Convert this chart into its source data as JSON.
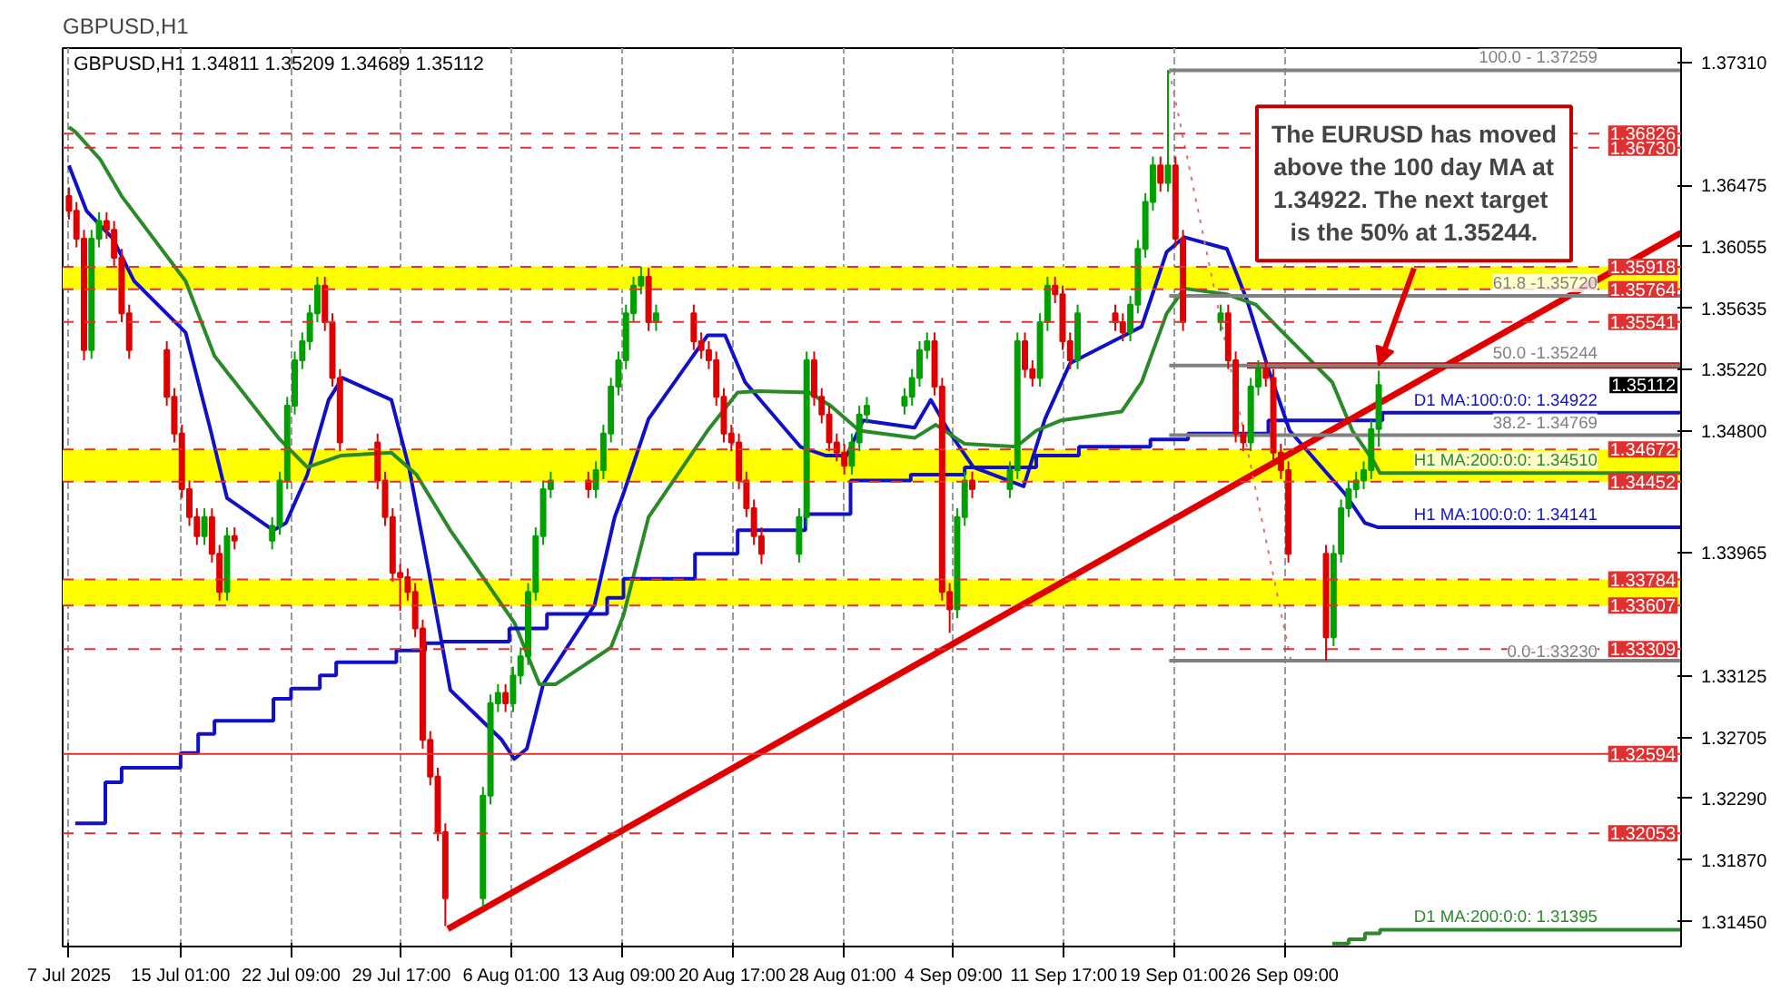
{
  "chart_data": {
    "type": "candlestick",
    "title": "GBPUSD,H1",
    "subtitle": "GBPUSD,H1  1.34811 1.35209 1.34689 1.35112",
    "x": [
      "2025-07-07T15:00",
      "2025-07-08T03:00",
      "2025-07-08T15:00",
      "2025-07-09T03:00",
      "2025-07-09T15:00",
      "2025-07-10T03:00",
      "2025-07-10T15:00",
      "2025-07-11T03:00",
      "2025-07-11T15:00",
      "2025-07-14T03:00",
      "2025-07-14T15:00",
      "2025-07-15T03:00",
      "2025-07-15T15:00",
      "2025-07-16T03:00",
      "2025-07-16T15:00",
      "2025-07-17T03:00",
      "2025-07-17T15:00",
      "2025-07-18T03:00",
      "2025-07-18T15:00",
      "2025-07-21T03:00",
      "2025-07-21T15:00",
      "2025-07-22T03:00",
      "2025-07-22T15:00",
      "2025-07-23T03:00",
      "2025-07-23T15:00",
      "2025-07-24T03:00",
      "2025-07-24T15:00",
      "2025-07-25T03:00",
      "2025-07-25T15:00",
      "2025-07-28T03:00",
      "2025-07-28T15:00",
      "2025-07-29T03:00",
      "2025-07-29T15:00",
      "2025-07-30T03:00",
      "2025-07-30T15:00",
      "2025-07-31T03:00",
      "2025-07-31T15:00",
      "2025-08-01T03:00",
      "2025-08-01T15:00",
      "2025-08-04T03:00",
      "2025-08-04T15:00",
      "2025-08-05T03:00",
      "2025-08-05T15:00",
      "2025-08-06T03:00",
      "2025-08-06T15:00",
      "2025-08-07T03:00",
      "2025-08-07T15:00",
      "2025-08-08T03:00",
      "2025-08-08T15:00",
      "2025-08-11T03:00",
      "2025-08-11T15:00",
      "2025-08-12T03:00",
      "2025-08-12T15:00",
      "2025-08-13T03:00",
      "2025-08-13T15:00",
      "2025-08-14T03:00",
      "2025-08-14T15:00",
      "2025-08-15T03:00",
      "2025-08-15T15:00",
      "2025-08-18T03:00",
      "2025-08-18T15:00",
      "2025-08-19T03:00",
      "2025-08-19T15:00",
      "2025-08-20T03:00",
      "2025-08-20T15:00",
      "2025-08-21T03:00",
      "2025-08-21T15:00",
      "2025-08-22T03:00",
      "2025-08-22T15:00",
      "2025-08-25T03:00",
      "2025-08-25T15:00",
      "2025-08-26T03:00",
      "2025-08-26T15:00",
      "2025-08-27T03:00",
      "2025-08-27T15:00",
      "2025-08-28T03:00",
      "2025-08-28T15:00",
      "2025-08-29T03:00",
      "2025-08-29T15:00",
      "2025-09-01T03:00",
      "2025-09-01T15:00",
      "2025-09-02T03:00",
      "2025-09-02T15:00",
      "2025-09-03T03:00",
      "2025-09-03T15:00",
      "2025-09-04T03:00",
      "2025-09-04T15:00",
      "2025-09-05T03:00",
      "2025-09-05T15:00",
      "2025-09-08T03:00",
      "2025-09-08T15:00",
      "2025-09-09T03:00",
      "2025-09-09T15:00",
      "2025-09-10T03:00",
      "2025-09-10T15:00",
      "2025-09-11T03:00",
      "2025-09-11T15:00",
      "2025-09-12T03:00",
      "2025-09-12T15:00",
      "2025-09-15T03:00",
      "2025-09-15T15:00",
      "2025-09-16T03:00",
      "2025-09-16T15:00",
      "2025-09-17T03:00",
      "2025-09-17T15:00",
      "2025-09-18T03:00",
      "2025-09-18T15:00",
      "2025-09-19T03:00",
      "2025-09-19T15:00",
      "2025-09-22T03:00",
      "2025-09-22T15:00",
      "2025-09-23T03:00",
      "2025-09-23T15:00",
      "2025-09-24T03:00",
      "2025-09-24T15:00",
      "2025-09-25T03:00",
      "2025-09-25T15:00",
      "2025-09-26T03:00",
      "2025-09-26T15:00",
      "2025-09-29T03:00",
      "2025-09-29T15:00",
      "2025-09-30T03:00",
      "2025-09-30T15:00",
      "2025-10-01T03:00",
      "2025-10-01T15:00",
      "2025-10-02T03:00",
      "2025-10-02T15:00"
    ],
    "ohlc": [
      [
        1.364,
        1.3646,
        1.3624,
        1.363
      ],
      [
        1.363,
        1.3636,
        1.3605,
        1.3611
      ],
      [
        1.3611,
        1.3617,
        1.3528,
        1.3535
      ],
      [
        1.3535,
        1.3617,
        1.3529,
        1.3611
      ],
      [
        1.3611,
        1.3629,
        1.3605,
        1.3623
      ],
      [
        1.3623,
        1.3629,
        1.3611,
        1.3617
      ],
      [
        1.3617,
        1.3623,
        1.3592,
        1.3598
      ],
      [
        1.3598,
        1.3604,
        1.3554,
        1.356
      ],
      [
        1.356,
        1.3566,
        1.3529,
        1.3535
      ],
      [
        1.3535,
        1.3541,
        1.3497,
        1.3503
      ],
      [
        1.3503,
        1.3509,
        1.3472,
        1.3478
      ],
      [
        1.3478,
        1.3484,
        1.3434,
        1.344
      ],
      [
        1.344,
        1.3446,
        1.3415,
        1.3421
      ],
      [
        1.3421,
        1.3427,
        1.3402,
        1.3408
      ],
      [
        1.3408,
        1.3427,
        1.3402,
        1.3421
      ],
      [
        1.3421,
        1.3427,
        1.339,
        1.3396
      ],
      [
        1.3396,
        1.3402,
        1.3364,
        1.337
      ],
      [
        1.337,
        1.3414,
        1.3364,
        1.3408
      ],
      [
        1.3408,
        1.3414,
        1.3399,
        1.3405
      ],
      [
        1.3405,
        1.3421,
        1.3399,
        1.3415
      ],
      [
        1.3415,
        1.3452,
        1.3409,
        1.3446
      ],
      [
        1.3446,
        1.3503,
        1.344,
        1.3497
      ],
      [
        1.3497,
        1.3534,
        1.3491,
        1.3528
      ],
      [
        1.3528,
        1.3547,
        1.3522,
        1.3541
      ],
      [
        1.3541,
        1.3566,
        1.3535,
        1.356
      ],
      [
        1.356,
        1.3585,
        1.3554,
        1.3579
      ],
      [
        1.3579,
        1.3585,
        1.3548,
        1.3554
      ],
      [
        1.3554,
        1.356,
        1.351,
        1.3516
      ],
      [
        1.3516,
        1.3522,
        1.3466,
        1.3472
      ],
      [
        1.3472,
        1.3478,
        1.344,
        1.3446
      ],
      [
        1.3446,
        1.3452,
        1.3415,
        1.3421
      ],
      [
        1.3421,
        1.3427,
        1.3377,
        1.3383
      ],
      [
        1.3383,
        1.3389,
        1.3357,
        1.338
      ],
      [
        1.338,
        1.3386,
        1.3364,
        1.337
      ],
      [
        1.337,
        1.3376,
        1.3339,
        1.3345
      ],
      [
        1.3345,
        1.3351,
        1.3263,
        1.3269
      ],
      [
        1.3269,
        1.3275,
        1.3238,
        1.3244
      ],
      [
        1.3244,
        1.325,
        1.32,
        1.3206
      ],
      [
        1.3206,
        1.3212,
        1.3142,
        1.3161
      ],
      [
        1.3161,
        1.3237,
        1.3155,
        1.3231
      ],
      [
        1.3231,
        1.33,
        1.3225,
        1.3294
      ],
      [
        1.3294,
        1.3307,
        1.3288,
        1.3301
      ],
      [
        1.3301,
        1.3307,
        1.3288,
        1.3294
      ],
      [
        1.3294,
        1.3319,
        1.3288,
        1.3313
      ],
      [
        1.3313,
        1.3332,
        1.3307,
        1.3326
      ],
      [
        1.3326,
        1.3376,
        1.332,
        1.337
      ],
      [
        1.337,
        1.3414,
        1.3364,
        1.3408
      ],
      [
        1.3408,
        1.3446,
        1.3402,
        1.344
      ],
      [
        1.344,
        1.3452,
        1.3434,
        1.3446
      ],
      [
        1.3446,
        1.3452,
        1.3434,
        1.344
      ],
      [
        1.344,
        1.3459,
        1.3434,
        1.3453
      ],
      [
        1.3453,
        1.3484,
        1.3447,
        1.3478
      ],
      [
        1.3478,
        1.3516,
        1.3472,
        1.351
      ],
      [
        1.351,
        1.3534,
        1.3504,
        1.3528
      ],
      [
        1.3528,
        1.3566,
        1.3522,
        1.356
      ],
      [
        1.356,
        1.3585,
        1.3554,
        1.3579
      ],
      [
        1.3579,
        1.3592,
        1.3573,
        1.3585
      ],
      [
        1.3585,
        1.3591,
        1.3548,
        1.3554
      ],
      [
        1.3554,
        1.3566,
        1.3548,
        1.356
      ],
      [
        1.356,
        1.3566,
        1.3535,
        1.3541
      ],
      [
        1.3541,
        1.3547,
        1.3529,
        1.3535
      ],
      [
        1.3535,
        1.3541,
        1.3522,
        1.3528
      ],
      [
        1.3528,
        1.3534,
        1.3497,
        1.3503
      ],
      [
        1.3503,
        1.3509,
        1.3472,
        1.3478
      ],
      [
        1.3478,
        1.3484,
        1.3466,
        1.3472
      ],
      [
        1.3472,
        1.3478,
        1.344,
        1.3446
      ],
      [
        1.3446,
        1.3452,
        1.3421,
        1.3427
      ],
      [
        1.3427,
        1.3433,
        1.3402,
        1.3408
      ],
      [
        1.3408,
        1.3414,
        1.3389,
        1.3396
      ],
      [
        1.3396,
        1.3427,
        1.339,
        1.3421
      ],
      [
        1.3421,
        1.3534,
        1.3415,
        1.3528
      ],
      [
        1.3528,
        1.3534,
        1.3497,
        1.3503
      ],
      [
        1.3503,
        1.3509,
        1.3485,
        1.3491
      ],
      [
        1.3491,
        1.3497,
        1.3466,
        1.3472
      ],
      [
        1.3472,
        1.3478,
        1.3459,
        1.3465
      ],
      [
        1.3465,
        1.3471,
        1.345,
        1.3456
      ],
      [
        1.3456,
        1.3478,
        1.345,
        1.3472
      ],
      [
        1.3472,
        1.3497,
        1.3466,
        1.3491
      ],
      [
        1.3491,
        1.3503,
        1.3485,
        1.3497
      ],
      [
        1.3497,
        1.3509,
        1.3491,
        1.3503
      ],
      [
        1.3503,
        1.3522,
        1.3497,
        1.3516
      ],
      [
        1.3516,
        1.3541,
        1.351,
        1.3535
      ],
      [
        1.3535,
        1.3547,
        1.3529,
        1.3541
      ],
      [
        1.3541,
        1.3547,
        1.3504,
        1.351
      ],
      [
        1.351,
        1.3516,
        1.3364,
        1.337
      ],
      [
        1.337,
        1.3376,
        1.3342,
        1.3358
      ],
      [
        1.3358,
        1.3427,
        1.3352,
        1.3421
      ],
      [
        1.3421,
        1.3452,
        1.3415,
        1.3446
      ],
      [
        1.3446,
        1.3452,
        1.3434,
        1.344
      ],
      [
        1.344,
        1.3459,
        1.3434,
        1.3453
      ],
      [
        1.3453,
        1.3547,
        1.3447,
        1.3541
      ],
      [
        1.3541,
        1.3547,
        1.3516,
        1.3522
      ],
      [
        1.3522,
        1.3528,
        1.351,
        1.3516
      ],
      [
        1.3516,
        1.356,
        1.351,
        1.3554
      ],
      [
        1.3554,
        1.3585,
        1.3548,
        1.3579
      ],
      [
        1.3579,
        1.3585,
        1.3567,
        1.3573
      ],
      [
        1.3573,
        1.3579,
        1.3535,
        1.3541
      ],
      [
        1.3541,
        1.3547,
        1.3522,
        1.3528
      ],
      [
        1.3528,
        1.3566,
        1.3522,
        1.356
      ],
      [
        1.356,
        1.3566,
        1.3548,
        1.3554
      ],
      [
        1.3554,
        1.356,
        1.3541,
        1.3547
      ],
      [
        1.3547,
        1.3572,
        1.3541,
        1.3566
      ],
      [
        1.3566,
        1.361,
        1.356,
        1.3604
      ],
      [
        1.3604,
        1.3642,
        1.3598,
        1.3636
      ],
      [
        1.3636,
        1.3667,
        1.363,
        1.3661
      ],
      [
        1.3661,
        1.3667,
        1.3643,
        1.3649
      ],
      [
        1.3649,
        1.3726,
        1.3643,
        1.3661
      ],
      [
        1.3661,
        1.3667,
        1.3605,
        1.3611
      ],
      [
        1.3611,
        1.3617,
        1.3548,
        1.3554
      ],
      [
        1.3554,
        1.3566,
        1.3548,
        1.356
      ],
      [
        1.356,
        1.3566,
        1.3522,
        1.3528
      ],
      [
        1.3528,
        1.3534,
        1.3472,
        1.3478
      ],
      [
        1.3478,
        1.3484,
        1.3466,
        1.3472
      ],
      [
        1.3472,
        1.3516,
        1.3466,
        1.351
      ],
      [
        1.351,
        1.3528,
        1.3504,
        1.3522
      ],
      [
        1.3522,
        1.3528,
        1.351,
        1.3516
      ],
      [
        1.3516,
        1.3522,
        1.3459,
        1.3465
      ],
      [
        1.3465,
        1.3471,
        1.3447,
        1.3453
      ],
      [
        1.3453,
        1.3459,
        1.339,
        1.3396
      ],
      [
        1.3396,
        1.3402,
        1.3323,
        1.3339
      ],
      [
        1.3339,
        1.3402,
        1.3333,
        1.3396
      ],
      [
        1.3396,
        1.3433,
        1.339,
        1.3427
      ],
      [
        1.3427,
        1.3446,
        1.3421,
        1.344
      ],
      [
        1.344,
        1.3452,
        1.3434,
        1.3446
      ],
      [
        1.3446,
        1.3459,
        1.344,
        1.3453
      ],
      [
        1.3453,
        1.3487,
        1.3447,
        1.3481
      ],
      [
        1.34811,
        1.35209,
        1.34689,
        1.35112
      ]
    ],
    "colors": [
      "#e00000",
      "#e00000",
      "#e00000",
      "#00a000",
      "#00a000",
      "#e00000",
      "#e00000",
      "#e00000",
      "#e00000",
      "#e00000",
      "#e00000",
      "#e00000",
      "#e00000",
      "#e00000",
      "#00a000",
      "#e00000",
      "#e00000",
      "#00a000",
      "#e00000",
      "#00a000",
      "#00a000",
      "#00a000",
      "#00a000",
      "#00a000",
      "#00a000",
      "#00a000",
      "#e00000",
      "#e00000",
      "#e00000",
      "#e00000",
      "#e00000",
      "#e00000",
      "#e00000",
      "#e00000",
      "#e00000",
      "#e00000",
      "#e00000",
      "#e00000",
      "#e00000",
      "#00a000",
      "#00a000",
      "#00a000",
      "#e00000",
      "#00a000",
      "#00a000",
      "#00a000",
      "#00a000",
      "#00a000",
      "#00a000",
      "#e00000",
      "#00a000",
      "#00a000",
      "#00a000",
      "#00a000",
      "#00a000",
      "#00a000",
      "#00a000",
      "#e00000",
      "#00a000",
      "#e00000",
      "#e00000",
      "#e00000",
      "#e00000",
      "#e00000",
      "#e00000",
      "#e00000",
      "#e00000",
      "#e00000",
      "#e00000",
      "#00a000",
      "#00a000",
      "#e00000",
      "#e00000",
      "#e00000",
      "#e00000",
      "#e00000",
      "#00a000",
      "#00a000",
      "#00a000",
      "#00a000",
      "#00a000",
      "#00a000",
      "#00a000",
      "#e00000",
      "#e00000",
      "#e00000",
      "#00a000",
      "#00a000",
      "#e00000",
      "#00a000",
      "#00a000",
      "#e00000",
      "#e00000",
      "#00a000",
      "#00a000",
      "#e00000",
      "#e00000",
      "#e00000",
      "#00a000",
      "#e00000",
      "#e00000",
      "#00a000",
      "#00a000",
      "#00a000",
      "#00a000",
      "#e00000",
      "#00a000",
      "#e00000",
      "#e00000",
      "#00a000",
      "#e00000",
      "#e00000",
      "#e00000",
      "#00a000",
      "#00a000",
      "#e00000",
      "#e00000",
      "#e00000",
      "#e00000",
      "#e00000",
      "#00a000",
      "#00a000",
      "#00a000",
      "#00a000",
      "#00a000",
      "#00a000",
      "#00a000"
    ],
    "series": [
      {
        "type": "line",
        "name": "H1 MA:100:0:0: 1.34141",
        "color": "#1010c8",
        "x": [
          "2025-07-07T15:00",
          "2025-07-08T19:00",
          "2025-07-10T13:00",
          "2025-07-11T23:00",
          "2025-07-15T09:00",
          "2025-07-17T01:00",
          "2025-07-18T03:00",
          "2025-07-21T05:00",
          "2025-07-22T01:00",
          "2025-07-23T11:00",
          "2025-07-24T21:00",
          "2025-07-25T19:00",
          "2025-07-29T01:00",
          "2025-07-30T05:00",
          "2025-07-31T13:00",
          "2025-08-01T23:00",
          "2025-08-05T09:00",
          "2025-08-06T05:00",
          "2025-08-07T01:00",
          "2025-08-08T03:00",
          "2025-08-11T13:00",
          "2025-08-12T21:00",
          "2025-08-13T11:00",
          "2025-08-15T03:00",
          "2025-08-19T01:00",
          "2025-08-20T05:00",
          "2025-08-21T13:00",
          "2025-08-25T05:00",
          "2025-08-26T21:00",
          "2025-08-28T07:00",
          "2025-08-29T09:00",
          "2025-09-01T19:00",
          "2025-09-02T21:00",
          "2025-09-04T01:00",
          "2025-09-05T17:00",
          "2025-09-09T01:00",
          "2025-09-10T11:00",
          "2025-09-12T03:00",
          "2025-09-15T13:00",
          "2025-09-16T21:00",
          "2025-09-18T13:00",
          "2025-09-19T17:00",
          "2025-09-22T13:00",
          "2025-09-23T21:00",
          "2025-09-25T07:00",
          "2025-09-26T17:00",
          "2025-09-30T09:00",
          "2025-10-01T17:00",
          "2025-10-02T13:00",
          "2025-10-22T17:00"
        ],
        "values": [
          1.3661,
          1.363,
          1.3611,
          1.3582,
          1.3547,
          1.348,
          1.3434,
          1.3412,
          1.3417,
          1.345,
          1.3501,
          1.3516,
          1.3501,
          1.3455,
          1.3383,
          1.3303,
          1.3269,
          1.3256,
          1.3263,
          1.3307,
          1.3361,
          1.3421,
          1.3437,
          1.3488,
          1.3545,
          1.3545,
          1.3513,
          1.3469,
          1.3463,
          1.3463,
          1.3487,
          1.3482,
          1.3501,
          1.348,
          1.3455,
          1.3442,
          1.3488,
          1.3526,
          1.3544,
          1.3551,
          1.3602,
          1.3612,
          1.3604,
          1.3569,
          1.3522,
          1.348,
          1.3437,
          1.3417,
          1.34141,
          1.34141
        ]
      },
      {
        "type": "line",
        "name": "H1 MA:200:0:0: 1.34510",
        "color": "#2a8a2a",
        "x": [
          "2025-07-07T15:00",
          "2025-07-08T01:00",
          "2025-07-09T17:00",
          "2025-07-11T03:00",
          "2025-07-15T09:00",
          "2025-07-17T07:00",
          "2025-07-21T13:00",
          "2025-07-23T11:00",
          "2025-07-25T17:00",
          "2025-07-29T01:00",
          "2025-07-30T17:00",
          "2025-08-01T23:00",
          "2025-08-06T05:00",
          "2025-08-07T21:00",
          "2025-08-08T23:00",
          "2025-08-12T15:00",
          "2025-08-13T11:00",
          "2025-08-15T03:00",
          "2025-08-19T01:00",
          "2025-08-21T01:00",
          "2025-08-22T09:00",
          "2025-08-25T19:00",
          "2025-08-27T05:00",
          "2025-08-29T03:00",
          "2025-09-01T19:00",
          "2025-09-03T05:00",
          "2025-09-05T03:00",
          "2025-09-08T13:00",
          "2025-09-09T21:00",
          "2025-09-11T13:00",
          "2025-09-15T13:00",
          "2025-09-16T21:00",
          "2025-09-18T13:00",
          "2025-09-19T17:00",
          "2025-09-22T13:00",
          "2025-09-24T11:00",
          "2025-09-25T21:00",
          "2025-09-29T13:00",
          "2025-09-30T21:00",
          "2025-10-02T07:00",
          "2025-10-02T17:00",
          "2025-10-22T17:00"
        ],
        "values": [
          1.3687,
          1.3684,
          1.3665,
          1.364,
          1.3582,
          1.3531,
          1.3475,
          1.3455,
          1.3463,
          1.3465,
          1.345,
          1.3412,
          1.3349,
          1.3307,
          1.3307,
          1.3332,
          1.3354,
          1.3421,
          1.348,
          1.3506,
          1.3507,
          1.3506,
          1.3497,
          1.348,
          1.3475,
          1.3484,
          1.3471,
          1.3469,
          1.348,
          1.3487,
          1.3493,
          1.3513,
          1.356,
          1.3577,
          1.3573,
          1.3566,
          1.3551,
          1.3513,
          1.348,
          1.3459,
          1.3451,
          1.3451
        ]
      },
      {
        "type": "step",
        "name": "D1 MA:100:0:0: 1.34922",
        "color": "#1010c8",
        "x": [
          "2025-07-08T01:00",
          "2025-07-10T01:00",
          "2025-07-11T03:00",
          "2025-07-15T01:00",
          "2025-07-16T05:00",
          "2025-07-17T07:00",
          "2025-07-21T05:00",
          "2025-07-22T09:00",
          "2025-07-24T07:00",
          "2025-07-25T09:00",
          "2025-07-29T09:00",
          "2025-07-31T07:00",
          "2025-08-01T09:00",
          "2025-08-05T21:00",
          "2025-08-08T09:00",
          "2025-08-12T09:00",
          "2025-08-13T11:00",
          "2025-08-18T05:00",
          "2025-08-21T01:00",
          "2025-08-25T13:00",
          "2025-08-28T13:00",
          "2025-09-01T13:00",
          "2025-09-05T03:00",
          "2025-09-09T21:00",
          "2025-09-12T17:00",
          "2025-09-17T11:00",
          "2025-09-19T23:00",
          "2025-09-25T07:00",
          "2025-10-02T21:00",
          "2025-10-22T17:00"
        ],
        "values": [
          1.3212,
          1.324,
          1.325,
          1.326,
          1.3273,
          1.3282,
          1.3297,
          1.3304,
          1.3313,
          1.3322,
          1.333,
          1.3335,
          1.3336,
          1.3345,
          1.3355,
          1.3366,
          1.3379,
          1.3396,
          1.3412,
          1.3423,
          1.3446,
          1.345,
          1.3455,
          1.3463,
          1.3469,
          1.3474,
          1.3478,
          1.3487,
          1.34922,
          1.34922
        ]
      },
      {
        "type": "step",
        "name": "D1 MA:200:0:0: 1.31395",
        "color": "#2a8a2a",
        "x": [
          "2025-09-29T13:00",
          "2025-09-30T15:00",
          "2025-10-01T17:00",
          "2025-10-02T17:00",
          "2025-10-22T17:00"
        ],
        "values": [
          1.313,
          1.3133,
          1.3137,
          1.31395,
          1.31395
        ]
      },
      {
        "type": "line",
        "color": "#e00000",
        "x": [
          "2025-08-01T19:00",
          "2025-10-22T17:00"
        ],
        "values": [
          1.314,
          1.3615
        ]
      },
      {
        "type": "line",
        "color": "#e00000",
        "x": [
          "2025-09-23T21:00",
          "2025-10-22T17:00"
        ],
        "values": [
          1.35244,
          1.35244
        ]
      },
      {
        "type": "line",
        "color": "#e07070",
        "line_style": "dotted",
        "x": [
          "2025-09-18T17:00",
          "2025-09-26T19:00"
        ],
        "values": [
          1.37259,
          1.3323
        ]
      },
      {
        "type": "line",
        "name": "100.0 - 1.37259",
        "color": "#808080",
        "x": [
          "2025-09-18T17:00",
          "2025-10-22T17:00"
        ],
        "values": [
          1.37259,
          1.37259
        ]
      },
      {
        "type": "line",
        "name": "61.8 -1.35720",
        "color": "#808080",
        "x": [
          "2025-09-18T17:00",
          "2025-10-22T17:00"
        ],
        "values": [
          1.3572,
          1.3572
        ]
      },
      {
        "type": "line",
        "name": "50.0 -1.35244",
        "color": "#808080",
        "x": [
          "2025-09-18T17:00",
          "2025-10-22T17:00"
        ],
        "values": [
          1.35244,
          1.35244
        ]
      },
      {
        "type": "line",
        "name": "38.2- 1.34769",
        "color": "#808080",
        "x": [
          "2025-09-18T17:00",
          "2025-10-22T17:00"
        ],
        "values": [
          1.34769,
          1.34769
        ]
      },
      {
        "type": "line",
        "name": "0.0-1.33230",
        "color": "#808080",
        "x": [
          "2025-09-18T17:00",
          "2025-10-22T17:00"
        ],
        "values": [
          1.3323,
          1.3323
        ]
      }
    ],
    "xlim": [
      "2025-07-07T05:00",
      "2025-10-22T17:00"
    ],
    "ylim": [
      1.3128,
      1.3741
    ],
    "xticks": [
      {
        "value": "2025-07-07T15:00",
        "label": "7 Jul 2025"
      },
      {
        "value": "2025-07-15T01:00",
        "label": "15 Jul 01:00"
      },
      {
        "value": "2025-07-22T09:00",
        "label": "22 Jul 09:00"
      },
      {
        "value": "2025-07-29T17:00",
        "label": "29 Jul 17:00"
      },
      {
        "value": "2025-08-06T01:00",
        "label": "6 Aug 01:00"
      },
      {
        "value": "2025-08-13T09:00",
        "label": "13 Aug 09:00"
      },
      {
        "value": "2025-08-20T17:00",
        "label": "20 Aug 17:00"
      },
      {
        "value": "2025-08-28T01:00",
        "label": "28 Aug 01:00"
      },
      {
        "value": "2025-09-04T09:00",
        "label": "4 Sep 09:00"
      },
      {
        "value": "2025-09-11T17:00",
        "label": "11 Sep 17:00"
      },
      {
        "value": "2025-09-19T01:00",
        "label": "19 Sep 01:00"
      },
      {
        "value": "2025-09-26T09:00",
        "label": "26 Sep 09:00"
      }
    ],
    "yticks": [
      {
        "value": 1.3731,
        "label": "1.37310"
      },
      {
        "value": 1.36475,
        "label": "1.36475"
      },
      {
        "value": 1.36055,
        "label": "1.36055"
      },
      {
        "value": 1.35635,
        "label": "1.35635"
      },
      {
        "value": 1.3522,
        "label": "1.35220"
      },
      {
        "value": 1.348,
        "label": "1.34800"
      },
      {
        "value": 1.33965,
        "label": "1.33965"
      },
      {
        "value": 1.33125,
        "label": "1.33125"
      },
      {
        "value": 1.32705,
        "label": "1.32705"
      },
      {
        "value": 1.3229,
        "label": "1.32290"
      },
      {
        "value": 1.3187,
        "label": "1.31870"
      },
      {
        "value": 1.3145,
        "label": "1.31450"
      }
    ],
    "bands": [
      {
        "axis": "y",
        "from": 1.35764,
        "to": 1.35918,
        "color": "#ffff00"
      },
      {
        "axis": "y",
        "from": 1.34452,
        "to": 1.34672,
        "color": "#ffff00"
      },
      {
        "axis": "y",
        "from": 1.33607,
        "to": 1.33784,
        "color": "#ffff00"
      }
    ],
    "ref_lines": [
      {
        "axis": "y",
        "value": 1.36826,
        "label": "1.36826",
        "color": "#e03030",
        "line_style": "dashed"
      },
      {
        "axis": "y",
        "value": 1.3673,
        "label": "1.36730",
        "color": "#e03030",
        "line_style": "dashed"
      },
      {
        "axis": "y",
        "value": 1.35918,
        "label": "1.35918",
        "color": "#e03030",
        "line_style": "dashed"
      },
      {
        "axis": "y",
        "value": 1.35764,
        "label": "1.35764",
        "color": "#e03030",
        "line_style": "dashed"
      },
      {
        "axis": "y",
        "value": 1.35541,
        "label": "1.35541",
        "color": "#e03030",
        "line_style": "dashed"
      },
      {
        "axis": "y",
        "value": 1.34672,
        "label": "1.34672",
        "color": "#e03030",
        "line_style": "dashed"
      },
      {
        "axis": "y",
        "value": 1.34452,
        "label": "1.34452",
        "color": "#e03030",
        "line_style": "dashed"
      },
      {
        "axis": "y",
        "value": 1.33784,
        "label": "1.33784",
        "color": "#e03030",
        "line_style": "dashed"
      },
      {
        "axis": "y",
        "value": 1.33607,
        "label": "1.33607",
        "color": "#e03030",
        "line_style": "dashed"
      },
      {
        "axis": "y",
        "value": 1.33309,
        "label": "1.33309",
        "color": "#e03030",
        "line_style": "dashed"
      },
      {
        "axis": "y",
        "value": 1.32594,
        "label": "1.32594",
        "color": "#e03030",
        "line_style": "solid"
      },
      {
        "axis": "y",
        "value": 1.32053,
        "label": "1.32053",
        "color": "#e03030",
        "line_style": "dashed"
      }
    ],
    "annotations": [
      "1.35112",
      {
        "text": "The EURUSD has moved above the 100 day MA at 1.34922.  The next target is the 50% at 1.35244.",
        "x": "2025-10-02T15:00",
        "y": 1.35244
      }
    ],
    "grid": "x"
  }
}
